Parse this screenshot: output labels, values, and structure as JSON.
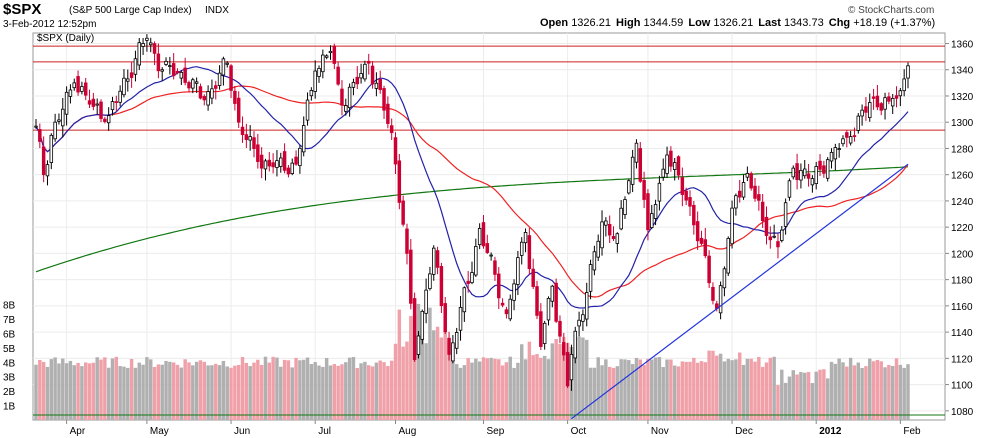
{
  "header": {
    "symbol": "$SPX",
    "name": "(S&P 500 Large Cap Index)",
    "exchange": "INDX",
    "date_time": "3-Feb-2012 12:52pm",
    "brand": "© StockCharts.com",
    "open_label": "Open",
    "open": "1326.21",
    "high_label": "High",
    "high": "1344.59",
    "low_label": "Low",
    "low": "1326.21",
    "last_label": "Last",
    "last": "1343.73",
    "chg_label": "Chg",
    "chg": "+18.19 (+1.37%)"
  },
  "colors": {
    "up": "#000000",
    "down": "#cc0033",
    "vol_up": "#b0b0b0",
    "vol_down": "#f0a0a8",
    "ma20": "#2222aa",
    "ma50": "#ee2222",
    "ma200": "#117711",
    "trend": "#2233dd",
    "hline": "#cc2222"
  },
  "chart_data": {
    "type": "candlestick",
    "title": "$SPX (Daily)",
    "x_labels": [
      "Apr",
      "May",
      "Jun",
      "Jul",
      "Aug",
      "Sep",
      "Oct",
      "Nov",
      "Dec",
      "2012",
      "Feb"
    ],
    "y_ticks": [
      1080,
      1100,
      1120,
      1140,
      1160,
      1180,
      1200,
      1220,
      1240,
      1260,
      1280,
      1300,
      1320,
      1340,
      1360
    ],
    "ylim": [
      1073,
      1368
    ],
    "volume_ticks": [
      "1B",
      "2B",
      "3B",
      "4B",
      "5B",
      "6B",
      "7B",
      "8B"
    ],
    "volume_max_billions": 8.6,
    "horizontal_lines": [
      1358,
      1346,
      1294
    ],
    "trendline": {
      "from": [
        "Oct-04",
        1074
      ],
      "to": [
        "Feb-03",
        1268
      ]
    },
    "moving_averages": [
      "20-day",
      "50-day",
      "200-day"
    ],
    "anchors": [
      [
        "Mar-22",
        1297
      ],
      [
        "Mar-24",
        1260
      ],
      [
        "Mar-28",
        1290
      ],
      [
        "Apr-05",
        1330
      ],
      [
        "Apr-12",
        1312
      ],
      [
        "Apr-18",
        1305
      ],
      [
        "Apr-29",
        1360
      ],
      [
        "May-02",
        1364
      ],
      [
        "May-06",
        1340
      ],
      [
        "May-13",
        1338
      ],
      [
        "May-23",
        1317
      ],
      [
        "May-31",
        1345
      ],
      [
        "Jun-03",
        1300
      ],
      [
        "Jun-10",
        1270
      ],
      [
        "Jun-16",
        1266
      ],
      [
        "Jun-24",
        1268
      ],
      [
        "Jul-01",
        1339
      ],
      [
        "Jul-07",
        1354
      ],
      [
        "Jul-12",
        1313
      ],
      [
        "Jul-21",
        1345
      ],
      [
        "Jul-29",
        1292
      ],
      [
        "Aug-04",
        1200
      ],
      [
        "Aug-08",
        1119
      ],
      [
        "Aug-11",
        1172
      ],
      [
        "Aug-15",
        1204
      ],
      [
        "Aug-19",
        1123
      ],
      [
        "Aug-26",
        1177
      ],
      [
        "Aug-31",
        1219
      ],
      [
        "Sep-09",
        1154
      ],
      [
        "Sep-16",
        1216
      ],
      [
        "Sep-22",
        1129
      ],
      [
        "Sep-27",
        1175
      ],
      [
        "Oct-03",
        1099
      ],
      [
        "Oct-04",
        1123
      ],
      [
        "Oct-14",
        1224
      ],
      [
        "Oct-20",
        1215
      ],
      [
        "Oct-27",
        1284
      ],
      [
        "Nov-01",
        1218
      ],
      [
        "Nov-08",
        1275
      ],
      [
        "Nov-16",
        1236
      ],
      [
        "Nov-25",
        1158
      ],
      [
        "Dec-02",
        1244
      ],
      [
        "Dec-07",
        1261
      ],
      [
        "Dec-13",
        1225
      ],
      [
        "Dec-19",
        1205
      ],
      [
        "Dec-23",
        1265
      ],
      [
        "Dec-30",
        1257
      ],
      [
        "Jan-06",
        1277
      ],
      [
        "Jan-13",
        1289
      ],
      [
        "Jan-20",
        1315
      ],
      [
        "Jan-27",
        1316
      ],
      [
        "Feb-01",
        1324
      ],
      [
        "Feb-03",
        1343
      ]
    ]
  }
}
